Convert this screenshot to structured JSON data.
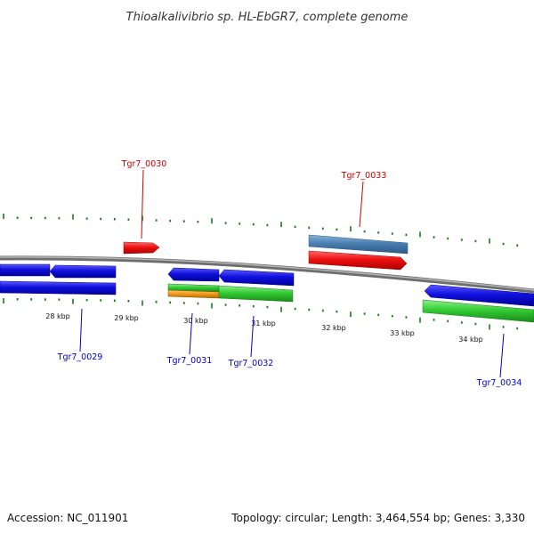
{
  "title": "Thioalkalivibrio sp. HL-EbGR7, complete genome",
  "footer": {
    "accession": "Accession: NC_011901",
    "summary": "Topology: circular; Length: 3,464,554 bp; Genes: 3,330"
  },
  "colors": {
    "background": "#ffffff",
    "backbone": "#8a8a8a",
    "tick": "#1a7a1a",
    "label_top": "#cc0000",
    "label_bottom": "#0000cc",
    "gene_blue": "#1010dd",
    "gene_red": "#ee1111",
    "gene_green": "#33cc33",
    "gene_orange": "#f59a1a",
    "gene_steel": "#4a7fb0"
  },
  "ticks": {
    "major_labels": [
      "28 kbp",
      "29 kbp",
      "30 kbp",
      "31 kbp",
      "32 kbp",
      "33 kbp",
      "34 kbp"
    ]
  },
  "genes": {
    "top": [
      "Tgr7_0030",
      "Tgr7_0033"
    ],
    "bottom": [
      "Tgr7_0029",
      "Tgr7_0031",
      "Tgr7_0032",
      "Tgr7_0034"
    ]
  }
}
